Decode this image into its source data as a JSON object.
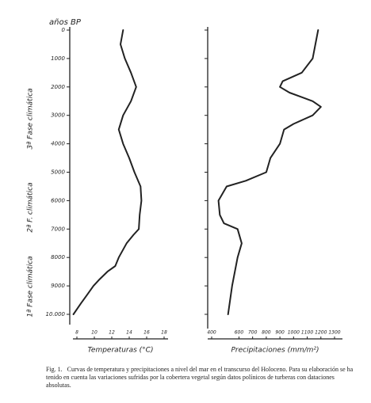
{
  "y_axis_label": "años BP",
  "phases": [
    "3ª Fase climática",
    "2ª F. climática",
    "1ª Fase climática"
  ],
  "caption": {
    "label": "Fig. 1.",
    "text": "Curvas de temperatura y precipitaciones a nivel del mar en el transcurso del Holoceno. Para su elaboración se ha tenido en cuenta las variaciones sufridas por la cobertera vegetal según datos polínicos de turberas con dataciones absolutas."
  },
  "chart_data": [
    {
      "type": "line",
      "orientation": "vertical",
      "xlabel": "Temperaturas (°C)",
      "x": [
        0,
        500,
        1000,
        1500,
        2000,
        2500,
        3000,
        3500,
        4000,
        4500,
        5000,
        5500,
        6000,
        6500,
        7000,
        7200,
        7500,
        8000,
        8300,
        8500,
        8800,
        9000,
        9300,
        9600,
        10000
      ],
      "values": [
        13.3,
        13.0,
        13.5,
        14.2,
        14.8,
        14.2,
        13.3,
        12.8,
        13.3,
        14.0,
        14.6,
        15.3,
        15.4,
        15.2,
        15.1,
        14.5,
        13.7,
        12.8,
        12.4,
        11.5,
        10.5,
        9.9,
        9.2,
        8.5,
        7.6
      ],
      "color": "#222",
      "xlim": [
        7,
        19
      ],
      "xticks": [
        8,
        10,
        12,
        14,
        16,
        18
      ],
      "ylim": [
        0,
        10000
      ],
      "y_inverted": true,
      "yticks": [
        0,
        1000,
        2000,
        3000,
        4000,
        5000,
        6000,
        7000,
        8000,
        9000,
        {
          "value": 10000,
          "label": "10.000"
        }
      ]
    },
    {
      "type": "line",
      "orientation": "vertical",
      "xlabel": "Precipitaciones (mm/m²)",
      "x": [
        0,
        1000,
        1500,
        1800,
        2000,
        2200,
        2500,
        2700,
        3000,
        3300,
        3500,
        4000,
        4500,
        5000,
        5300,
        5500,
        6000,
        6500,
        6800,
        7000,
        7500,
        8000,
        9000,
        10000
      ],
      "values": [
        1180,
        1140,
        1060,
        920,
        900,
        970,
        1140,
        1200,
        1140,
        1000,
        930,
        900,
        830,
        800,
        650,
        510,
        450,
        460,
        490,
        590,
        620,
        590,
        550,
        520
      ],
      "color": "#222",
      "xlim": [
        380,
        1340
      ],
      "xticks": [
        400,
        600,
        700,
        800,
        900,
        1000,
        1100,
        1200,
        1300
      ],
      "ylim": [
        0,
        10000
      ],
      "y_inverted": true
    }
  ]
}
